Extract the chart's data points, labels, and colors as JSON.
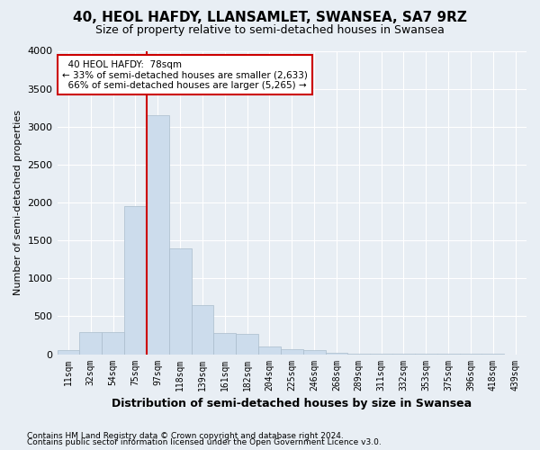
{
  "title": "40, HEOL HAFDY, LLANSAMLET, SWANSEA, SA7 9RZ",
  "subtitle": "Size of property relative to semi-detached houses in Swansea",
  "xlabel": "Distribution of semi-detached houses by size in Swansea",
  "ylabel": "Number of semi-detached properties",
  "footer1": "Contains HM Land Registry data © Crown copyright and database right 2024.",
  "footer2": "Contains public sector information licensed under the Open Government Licence v3.0.",
  "property_label": "40 HEOL HAFDY:  78sqm",
  "pct_smaller": 33,
  "pct_larger": 66,
  "num_smaller": "2,633",
  "num_larger": "5,265",
  "bin_labels": [
    "11sqm",
    "32sqm",
    "54sqm",
    "75sqm",
    "97sqm",
    "118sqm",
    "139sqm",
    "161sqm",
    "182sqm",
    "204sqm",
    "225sqm",
    "246sqm",
    "268sqm",
    "289sqm",
    "311sqm",
    "332sqm",
    "353sqm",
    "375sqm",
    "396sqm",
    "418sqm",
    "439sqm"
  ],
  "bar_values": [
    50,
    290,
    290,
    1950,
    3150,
    1400,
    650,
    275,
    270,
    100,
    65,
    50,
    20,
    10,
    5,
    3,
    2,
    2,
    1,
    1,
    0
  ],
  "bar_color": "#ccdcec",
  "bar_edge_color": "#aabccc",
  "vline_color": "#cc0000",
  "vline_position": 3.5,
  "annotation_box_color": "#ffffff",
  "annotation_box_edge": "#cc0000",
  "ylim": [
    0,
    4000
  ],
  "yticks": [
    0,
    500,
    1000,
    1500,
    2000,
    2500,
    3000,
    3500,
    4000
  ],
  "background_color": "#e8eef4",
  "plot_bg_color": "#e8eef4",
  "grid_color": "#ffffff",
  "title_fontsize": 11,
  "subtitle_fontsize": 9,
  "xlabel_fontsize": 9,
  "ylabel_fontsize": 8,
  "tick_fontsize": 8,
  "xtick_fontsize": 7,
  "footer_fontsize": 6.5,
  "annot_fontsize": 7.5
}
